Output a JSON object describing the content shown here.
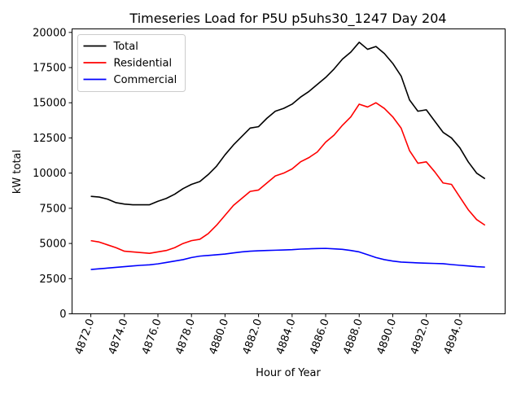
{
  "chart_data": {
    "type": "line",
    "title": "Timeseries Load for P5U p5uhs30_1247  Day 204",
    "xlabel": "Hour of Year",
    "ylabel": "kW total",
    "xlim": [
      4870.88,
      4896.7
    ],
    "ylim": [
      0,
      20250
    ],
    "xticks": [
      4872,
      4874,
      4876,
      4878,
      4880,
      4882,
      4884,
      4886,
      4888,
      4890,
      4892,
      4894
    ],
    "xtick_labels": [
      "4872.0",
      "4874.0",
      "4876.0",
      "4878.0",
      "4880.0",
      "4882.0",
      "4884.0",
      "4886.0",
      "4888.0",
      "4890.0",
      "4892.0",
      "4894.0"
    ],
    "yticks": [
      0,
      2500,
      5000,
      7500,
      10000,
      12500,
      15000,
      17500,
      20000
    ],
    "ytick_labels": [
      "0",
      "2500",
      "5000",
      "7500",
      "10000",
      "12500",
      "15000",
      "17500",
      "20000"
    ],
    "legend_position": "top-left",
    "grid": false,
    "series": [
      {
        "name": "Total",
        "color": "#000000",
        "x": [
          4872.0,
          4872.5,
          4873.0,
          4873.5,
          4874.0,
          4874.5,
          4875.0,
          4875.5,
          4876.0,
          4876.5,
          4877.0,
          4877.5,
          4878.0,
          4878.5,
          4879.0,
          4879.5,
          4880.0,
          4880.5,
          4881.0,
          4881.5,
          4882.0,
          4882.5,
          4883.0,
          4883.5,
          4884.0,
          4884.5,
          4885.0,
          4885.5,
          4886.0,
          4886.5,
          4887.0,
          4887.5,
          4888.0,
          4888.5,
          4889.0,
          4889.5,
          4890.0,
          4890.5,
          4891.0,
          4891.5,
          4892.0,
          4892.5,
          4893.0,
          4893.5,
          4894.0,
          4894.5,
          4895.0,
          4895.5
        ],
        "values": [
          8350,
          8300,
          8150,
          7900,
          7800,
          7750,
          7750,
          7750,
          8000,
          8200,
          8500,
          8900,
          9200,
          9400,
          9900,
          10500,
          11300,
          12000,
          12600,
          13200,
          13300,
          13900,
          14400,
          14600,
          14900,
          15400,
          15800,
          16300,
          16800,
          17400,
          18100,
          18600,
          19300,
          18800,
          19000,
          18500,
          17800,
          16900,
          15200,
          14400,
          14500,
          13700,
          12900,
          12500,
          11800,
          10800,
          10000,
          9600
        ]
      },
      {
        "name": "Residential",
        "color": "#ff0000",
        "x": [
          4872.0,
          4872.5,
          4873.0,
          4873.5,
          4874.0,
          4874.5,
          4875.0,
          4875.5,
          4876.0,
          4876.5,
          4877.0,
          4877.5,
          4878.0,
          4878.5,
          4879.0,
          4879.5,
          4880.0,
          4880.5,
          4881.0,
          4881.5,
          4882.0,
          4882.5,
          4883.0,
          4883.5,
          4884.0,
          4884.5,
          4885.0,
          4885.5,
          4886.0,
          4886.5,
          4887.0,
          4887.5,
          4888.0,
          4888.5,
          4889.0,
          4889.5,
          4890.0,
          4890.5,
          4891.0,
          4891.5,
          4892.0,
          4892.5,
          4893.0,
          4893.5,
          4894.0,
          4894.5,
          4895.0,
          4895.5
        ],
        "values": [
          5200,
          5100,
          4900,
          4700,
          4450,
          4400,
          4350,
          4300,
          4400,
          4500,
          4700,
          5000,
          5200,
          5300,
          5700,
          6300,
          7000,
          7700,
          8200,
          8700,
          8800,
          9300,
          9800,
          10000,
          10300,
          10800,
          11100,
          11500,
          12200,
          12700,
          13400,
          14000,
          14900,
          14700,
          15000,
          14600,
          14000,
          13200,
          11600,
          10700,
          10800,
          10100,
          9300,
          9200,
          8300,
          7400,
          6700,
          6300
        ]
      },
      {
        "name": "Commercial",
        "color": "#0000ff",
        "x": [
          4872.0,
          4872.5,
          4873.0,
          4873.5,
          4874.0,
          4874.5,
          4875.0,
          4875.5,
          4876.0,
          4876.5,
          4877.0,
          4877.5,
          4878.0,
          4878.5,
          4879.0,
          4879.5,
          4880.0,
          4880.5,
          4881.0,
          4881.5,
          4882.0,
          4882.5,
          4883.0,
          4883.5,
          4884.0,
          4884.5,
          4885.0,
          4885.5,
          4886.0,
          4886.5,
          4887.0,
          4887.5,
          4888.0,
          4888.5,
          4889.0,
          4889.5,
          4890.0,
          4890.5,
          4891.0,
          4891.5,
          4892.0,
          4892.5,
          4893.0,
          4893.5,
          4894.0,
          4894.5,
          4895.0,
          4895.5
        ],
        "values": [
          3150,
          3200,
          3250,
          3300,
          3350,
          3400,
          3450,
          3480,
          3550,
          3650,
          3750,
          3850,
          4000,
          4100,
          4150,
          4200,
          4250,
          4330,
          4400,
          4450,
          4480,
          4500,
          4520,
          4540,
          4560,
          4600,
          4620,
          4640,
          4650,
          4620,
          4580,
          4500,
          4400,
          4200,
          4000,
          3850,
          3750,
          3680,
          3650,
          3620,
          3600,
          3580,
          3560,
          3500,
          3450,
          3400,
          3350,
          3320
        ]
      }
    ]
  }
}
